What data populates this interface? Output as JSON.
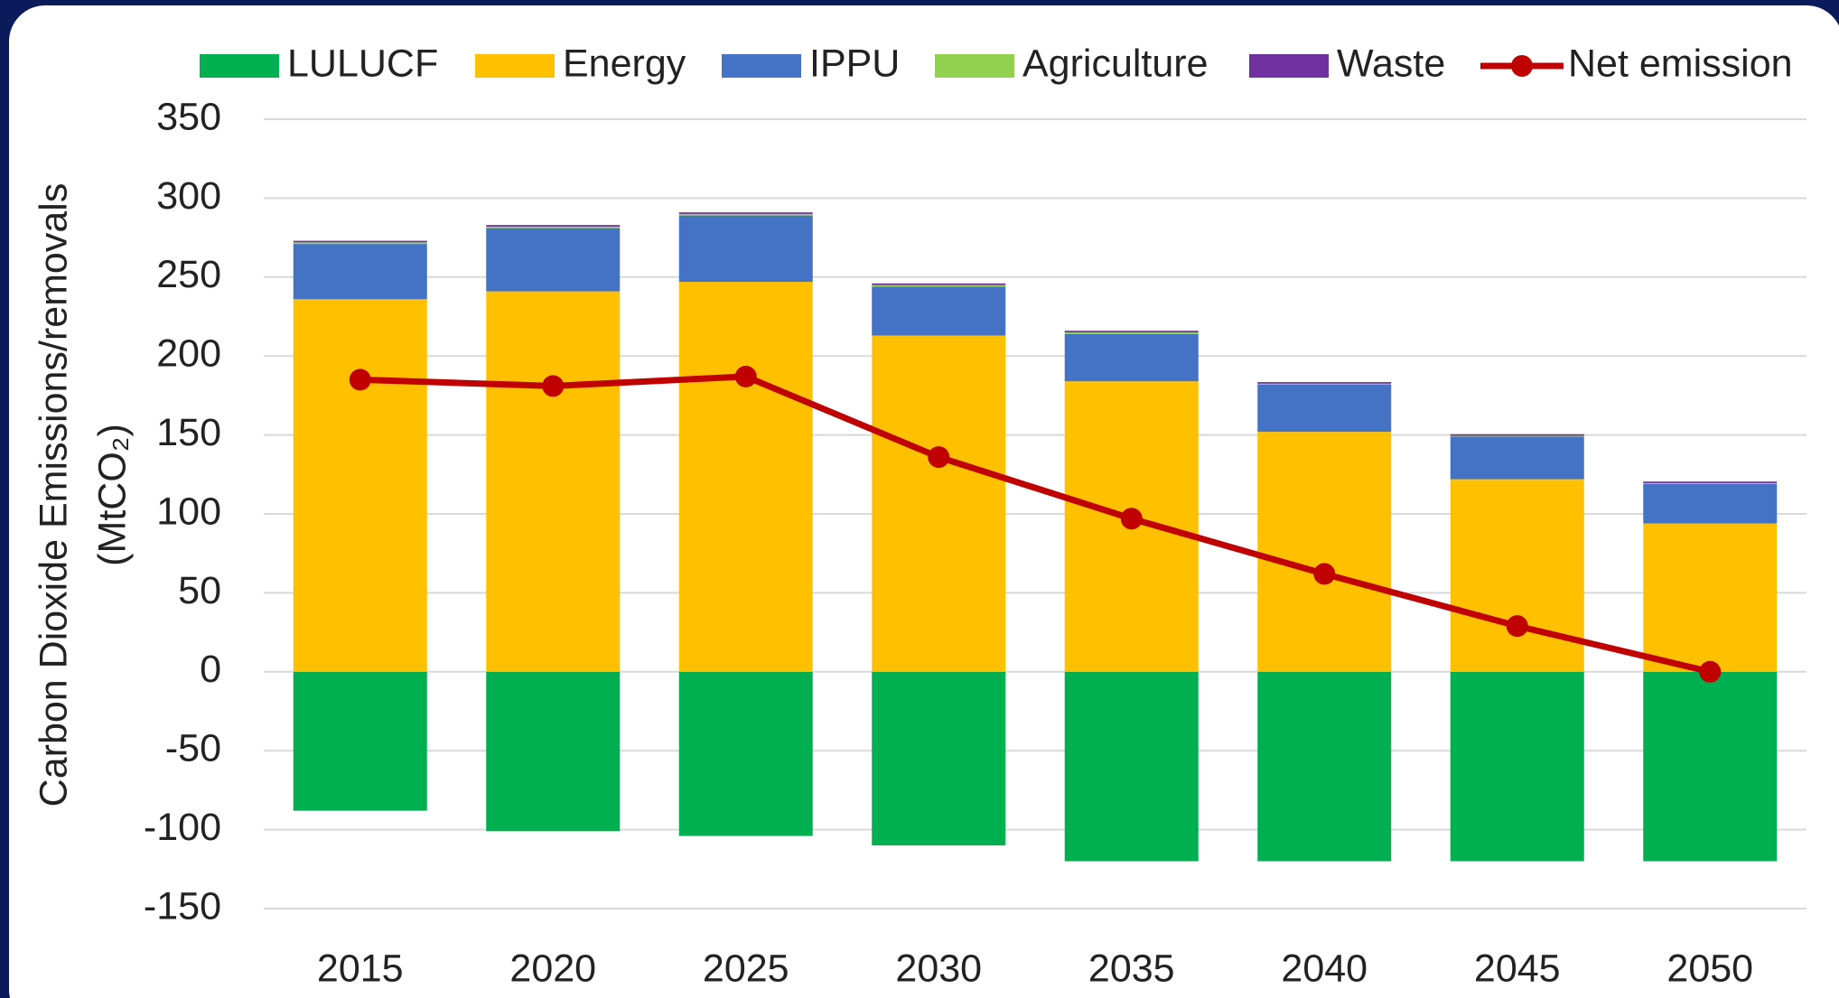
{
  "chart_data": {
    "type": "bar",
    "stacked": true,
    "y_label": [
      "Carbon Dioxide Emissions/removals",
      "(MtCO₂)"
    ],
    "categories": [
      "2015",
      "2020",
      "2025",
      "2030",
      "2035",
      "2040",
      "2045",
      "2050"
    ],
    "series": [
      {
        "name": "LULUCF",
        "color": "#00b050",
        "values": [
          -88,
          -101,
          -104,
          -110,
          -120,
          -120,
          -120,
          -120
        ]
      },
      {
        "name": "Energy",
        "color": "#ffc000",
        "values": [
          236,
          241,
          247,
          213,
          184,
          152,
          122,
          94
        ]
      },
      {
        "name": "IPPU",
        "color": "#4472c4",
        "values": [
          35,
          40,
          42,
          31,
          30,
          30,
          27,
          25
        ]
      },
      {
        "name": "Agriculture",
        "color": "#92d050",
        "values": [
          1,
          1,
          1,
          1,
          1,
          0.5,
          0.5,
          0.5
        ]
      },
      {
        "name": "Waste",
        "color": "#7030a0",
        "values": [
          1,
          1,
          1,
          1,
          1,
          1,
          1,
          1
        ]
      },
      {
        "name": "Net emission",
        "color": "#c00000",
        "type": "line",
        "values": [
          185,
          181,
          187,
          136,
          97,
          62,
          29,
          0
        ]
      }
    ],
    "ylim": [
      -150,
      350
    ],
    "yticks": [
      -150,
      -100,
      -50,
      0,
      50,
      100,
      150,
      200,
      250,
      300,
      350
    ],
    "grid": true,
    "legend": "top"
  }
}
